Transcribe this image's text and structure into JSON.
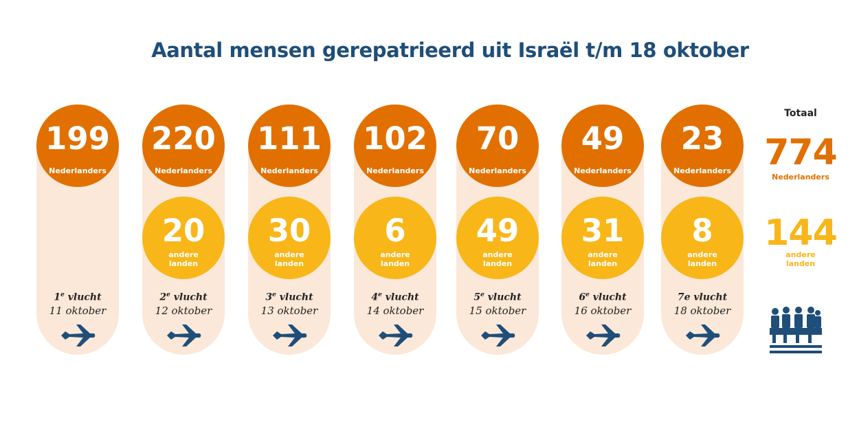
{
  "title": "Aantal mensen gerepatrieerd uit Israël t/m 18 oktober",
  "labels": {
    "nederlanders": "Nederlanders",
    "andere": "andere",
    "landen": "landen",
    "totaal": "Totaal",
    "vlucht": "vlucht"
  },
  "colors": {
    "nederlanders": "#e17000",
    "andere_landen": "#f8b619",
    "pill": "#fbe8d9",
    "title": "#1f4e79",
    "icon": "#1f4e79"
  },
  "chart_data": {
    "type": "table",
    "title": "Aantal mensen gerepatrieerd uit Israël t/m 18 oktober",
    "series": [
      {
        "name": "Nederlanders",
        "values": [
          199,
          220,
          111,
          102,
          70,
          49,
          23
        ]
      },
      {
        "name": "andere landen",
        "values": [
          null,
          20,
          30,
          6,
          49,
          31,
          8
        ]
      }
    ],
    "flights": [
      {
        "nr": "1",
        "sup": "e",
        "date": "11 oktober",
        "nl": "199",
        "al": null
      },
      {
        "nr": "2",
        "sup": "e",
        "date": "12 oktober",
        "nl": "220",
        "al": "20"
      },
      {
        "nr": "3",
        "sup": "e",
        "date": "13 oktober",
        "nl": "111",
        "al": "30"
      },
      {
        "nr": "4",
        "sup": "e",
        "date": "14 oktober",
        "nl": "102",
        "al": "6"
      },
      {
        "nr": "5",
        "sup": "e",
        "date": "15 oktober",
        "nl": "70",
        "al": "49"
      },
      {
        "nr": "6",
        "sup": "e",
        "date": "16 oktober",
        "nl": "49",
        "al": "31"
      },
      {
        "nr": "7e",
        "sup": "",
        "date": "18 oktober",
        "nl": "23",
        "al": "8"
      }
    ],
    "totals": {
      "nederlanders": "774",
      "andere_landen": "144"
    }
  },
  "icons": {
    "flight": "airplane-icon",
    "total": "people-group-icon"
  }
}
